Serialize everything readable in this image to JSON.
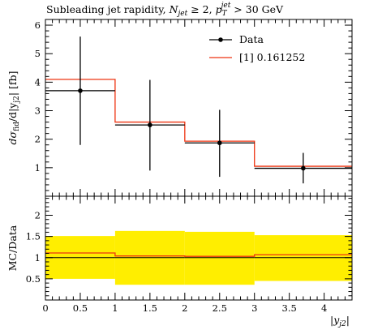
{
  "chart_data": {
    "type": "histogram",
    "title": "Subleading jet rapidity, N_jet ≥ 2, p_T^jet > 30 GeV",
    "title_parts": {
      "prefix": "Subleading jet rapidity, ",
      "njet": "N",
      "njet_sub": "jet",
      "ge": " ≥ 2, ",
      "pt": "p",
      "pt_sub": "T",
      "pt_sup": "jet",
      "suffix": " > 30 GeV"
    },
    "xlabel": "|y_j2|",
    "xlabel_parts": {
      "open": "|",
      "y": "y",
      "sub": "j2",
      "close": "|"
    },
    "ylabel": "dσ_fid/d|y_j2| [fb]",
    "ylabel_parts": {
      "d": "dσ",
      "sub1": "fid",
      "mid": "/d|y",
      "sub2": "j2",
      "end": "| [fb]"
    },
    "ratio_ylabel": "MC/Data",
    "xlim": [
      0,
      4.4
    ],
    "ylim": [
      0,
      6.2
    ],
    "ratio_ylim": [
      0,
      2.45
    ],
    "x_ticks": [
      "0",
      "0.5",
      "1",
      "1.5",
      "2",
      "2.5",
      "3",
      "3.5",
      "4"
    ],
    "y_ticks": [
      "1",
      "2",
      "3",
      "4",
      "5",
      "6"
    ],
    "ratio_y_ticks": [
      "0.5",
      "1",
      "1.5",
      "2"
    ],
    "legend_position": "top-right",
    "bins": [
      0,
      1,
      2,
      3,
      4.4
    ],
    "series": [
      {
        "name": "Data",
        "color": "#000000",
        "points": [
          {
            "x": 0.5,
            "y": 3.7,
            "ylow": 1.8,
            "yhigh": 5.6
          },
          {
            "x": 1.5,
            "y": 2.5,
            "ylow": 0.9,
            "yhigh": 4.08
          },
          {
            "x": 2.5,
            "y": 1.87,
            "ylow": 0.68,
            "yhigh": 3.03
          },
          {
            "x": 3.7,
            "y": 0.98,
            "ylow": 0.45,
            "yhigh": 1.52
          }
        ]
      },
      {
        "name": "[1] 0.161252",
        "color": "#ee3311",
        "values": [
          4.1,
          2.6,
          1.93,
          1.05
        ]
      }
    ],
    "ratio": {
      "band_color": "#ffee00",
      "band": [
        {
          "low": 0.5,
          "high": 1.51
        },
        {
          "low": 0.36,
          "high": 1.63
        },
        {
          "low": 0.36,
          "high": 1.61
        },
        {
          "low": 0.45,
          "high": 1.53
        }
      ],
      "data_line": [
        1.0,
        1.0,
        1.0,
        1.0
      ],
      "mc": [
        1.11,
        1.04,
        1.03,
        1.07
      ]
    }
  }
}
